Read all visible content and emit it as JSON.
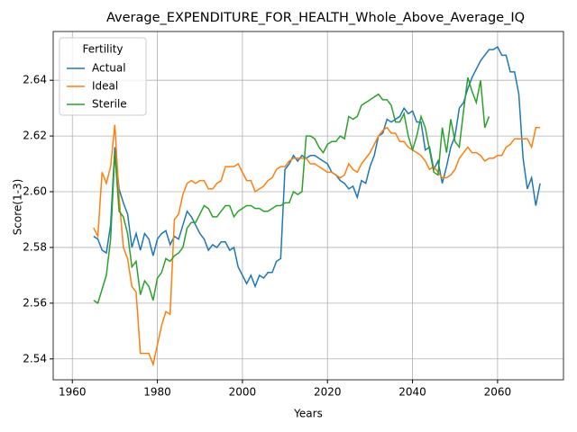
{
  "chart_data": {
    "type": "line",
    "title": "Average_EXPENDITURE_FOR_HEALTH_Whole_Above_Average_IQ",
    "x_label": "Years",
    "y_label": "Score(1-3)",
    "legend_title": "Fertility",
    "legend_position": "upper left",
    "grid": true,
    "x": [
      1965,
      1966,
      1967,
      1968,
      1969,
      1970,
      1971,
      1972,
      1973,
      1974,
      1975,
      1976,
      1977,
      1978,
      1979,
      1980,
      1981,
      1982,
      1983,
      1984,
      1985,
      1986,
      1987,
      1988,
      1989,
      1990,
      1991,
      1992,
      1993,
      1994,
      1995,
      1996,
      1997,
      1998,
      1999,
      2000,
      2001,
      2002,
      2003,
      2004,
      2005,
      2006,
      2007,
      2008,
      2009,
      2010,
      2011,
      2012,
      2013,
      2014,
      2015,
      2016,
      2017,
      2018,
      2019,
      2020,
      2021,
      2022,
      2023,
      2024,
      2025,
      2026,
      2027,
      2028,
      2029,
      2030,
      2031,
      2032,
      2033,
      2034,
      2035,
      2036,
      2037,
      2038,
      2039,
      2040,
      2041,
      2042,
      2043,
      2044,
      2045,
      2046,
      2047,
      2048,
      2049,
      2050,
      2051,
      2052,
      2053,
      2054,
      2055,
      2056,
      2057,
      2058,
      2059,
      2060,
      2061,
      2062,
      2063,
      2064,
      2065,
      2066,
      2067,
      2068,
      2069,
      2070
    ],
    "xlim": [
      1955.5,
      2075.5
    ],
    "xticks": [
      1960,
      1980,
      2000,
      2020,
      2040,
      2060
    ],
    "ylim": [
      2.5325,
      2.6575
    ],
    "yticks": [
      2.54,
      2.56,
      2.58,
      {
        "value": 2.6,
        "label": "2.60"
      },
      2.62,
      2.64
    ],
    "series": [
      {
        "name": "Actual",
        "color": "#1f77b4",
        "values": [
          2.584,
          2.583,
          2.579,
          2.578,
          2.588,
          2.616,
          2.601,
          2.596,
          2.592,
          2.58,
          2.585,
          2.579,
          2.585,
          2.583,
          2.577,
          2.583,
          2.585,
          2.586,
          2.581,
          2.584,
          2.583,
          2.588,
          2.593,
          2.591,
          2.588,
          2.585,
          2.583,
          2.579,
          2.581,
          2.58,
          2.582,
          2.582,
          2.579,
          2.58,
          2.573,
          2.57,
          2.567,
          2.57,
          2.566,
          2.57,
          2.569,
          2.571,
          2.571,
          2.575,
          2.576,
          2.608,
          2.61,
          2.613,
          2.611,
          2.613,
          2.612,
          2.613,
          2.613,
          2.612,
          2.611,
          2.61,
          2.607,
          2.606,
          2.604,
          2.603,
          2.601,
          2.602,
          2.598,
          2.604,
          2.603,
          2.609,
          2.613,
          2.62,
          2.621,
          2.626,
          2.625,
          2.626,
          2.627,
          2.63,
          2.628,
          2.629,
          2.625,
          2.625,
          2.615,
          2.616,
          2.608,
          2.611,
          2.603,
          2.609,
          2.616,
          2.62,
          2.63,
          2.632,
          2.637,
          2.641,
          2.644,
          2.647,
          2.649,
          2.651,
          2.651,
          2.652,
          2.649,
          2.649,
          2.643,
          2.643,
          2.635,
          2.612,
          2.601,
          2.605,
          2.595,
          2.603
        ]
      },
      {
        "name": "Ideal",
        "color": "#ff7f0e",
        "values": [
          2.587,
          2.584,
          2.607,
          2.603,
          2.609,
          2.624,
          2.598,
          2.58,
          2.576,
          2.566,
          2.564,
          2.542,
          2.542,
          2.542,
          2.538,
          2.545,
          2.552,
          2.557,
          2.556,
          2.59,
          2.592,
          2.599,
          2.603,
          2.604,
          2.603,
          2.604,
          2.604,
          2.601,
          2.601,
          2.603,
          2.604,
          2.609,
          2.609,
          2.609,
          2.61,
          2.607,
          2.604,
          2.604,
          2.6,
          2.601,
          2.602,
          2.604,
          2.605,
          2.608,
          2.609,
          2.609,
          2.611,
          2.612,
          2.612,
          2.612,
          2.612,
          2.61,
          2.61,
          2.609,
          2.608,
          2.607,
          2.607,
          2.606,
          2.605,
          2.606,
          2.61,
          2.608,
          2.607,
          2.61,
          2.612,
          2.614,
          2.617,
          2.62,
          2.622,
          2.623,
          2.621,
          2.621,
          2.618,
          2.618,
          2.616,
          2.615,
          2.614,
          2.613,
          2.611,
          2.608,
          2.609,
          2.607,
          2.605,
          2.605,
          2.606,
          2.608,
          2.612,
          2.614,
          2.616,
          2.614,
          2.614,
          2.613,
          2.611,
          2.612,
          2.612,
          2.613,
          2.613,
          2.616,
          2.617,
          2.619,
          2.619,
          2.619,
          2.619,
          2.616,
          2.623,
          2.623
        ]
      },
      {
        "name": "Sterile",
        "color": "#2ca02c",
        "values": [
          2.561,
          2.56,
          2.565,
          2.57,
          2.583,
          2.614,
          2.593,
          2.591,
          2.585,
          2.573,
          2.575,
          2.563,
          2.568,
          2.566,
          2.561,
          2.569,
          2.571,
          2.576,
          2.575,
          2.577,
          2.578,
          2.58,
          2.587,
          2.589,
          2.589,
          2.592,
          2.595,
          2.594,
          2.591,
          2.591,
          2.593,
          2.595,
          2.595,
          2.591,
          2.593,
          2.594,
          2.595,
          2.595,
          2.594,
          2.594,
          2.593,
          2.593,
          2.594,
          2.595,
          2.595,
          2.596,
          2.596,
          2.6,
          2.599,
          2.6,
          2.62,
          2.62,
          2.619,
          2.616,
          2.614,
          2.617,
          2.618,
          2.618,
          2.62,
          2.619,
          2.627,
          2.626,
          2.627,
          2.631,
          2.632,
          2.633,
          2.634,
          2.635,
          2.633,
          2.633,
          2.631,
          2.625,
          2.625,
          2.628,
          2.62,
          2.615,
          2.62,
          2.627,
          2.623,
          2.615,
          2.607,
          2.606,
          2.623,
          2.614,
          2.626,
          2.618,
          2.616,
          2.629,
          2.641,
          2.636,
          2.632,
          2.64,
          2.623,
          2.627,
          null,
          null,
          null,
          null,
          null,
          null,
          null,
          null,
          null,
          null,
          null,
          null
        ]
      }
    ]
  }
}
